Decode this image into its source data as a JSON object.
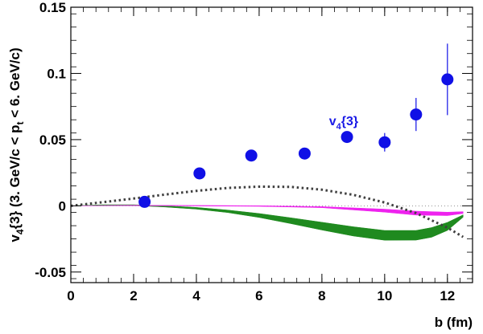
{
  "chart_data": {
    "type": "scatter",
    "xlabel": "b (fm)",
    "ylabel": {
      "main": "v",
      "main_sub": "4",
      "part1": "{3} (3. GeV/c < p",
      "part1_sub": "t",
      "part2": " < 6. GeV/c)"
    },
    "xlim": [
      0,
      12.8
    ],
    "ylim": [
      -0.058,
      0.15
    ],
    "x_ticks": [
      0,
      2,
      4,
      6,
      8,
      10,
      12
    ],
    "x_tick_labels": [
      "0",
      "2",
      "4",
      "6",
      "8",
      "10",
      "12"
    ],
    "y_ticks": [
      -0.05,
      0,
      0.05,
      0.1,
      0.15
    ],
    "y_tick_labels": [
      "-0.05",
      "0",
      "0.05",
      "0.1",
      "0.15"
    ],
    "annotation": {
      "text": "v",
      "sub": "4",
      "rest": "{3}",
      "x": 9.1,
      "y": 0.061
    },
    "points": {
      "color": "#1010e6",
      "x": [
        2.35,
        4.1,
        5.75,
        7.45,
        8.8,
        10.0,
        11.0,
        12.0
      ],
      "y": [
        0.003,
        0.0245,
        0.038,
        0.0395,
        0.052,
        0.048,
        0.069,
        0.0955
      ],
      "err": [
        0.001,
        0.004,
        0.0015,
        0.0015,
        0.004,
        0.007,
        0.0125,
        0.027
      ]
    },
    "dotted_curve": {
      "color": "#404040",
      "x": [
        0,
        1,
        2,
        3,
        4,
        5,
        6,
        7,
        8,
        9,
        10,
        11,
        12,
        12.5
      ],
      "y": [
        0,
        0.0027,
        0.0055,
        0.0085,
        0.0113,
        0.0135,
        0.0145,
        0.0143,
        0.0122,
        0.0083,
        0.0025,
        -0.0055,
        -0.0165,
        -0.0235
      ]
    },
    "green_band": {
      "color": "#1f8a1f",
      "x": [
        0,
        1,
        2,
        3,
        4,
        5,
        6,
        7,
        8,
        9,
        10,
        11,
        11.5,
        12,
        12.5
      ],
      "upper": [
        0,
        0.0008,
        0.0008,
        0,
        -0.0012,
        -0.0032,
        -0.0058,
        -0.009,
        -0.0124,
        -0.0158,
        -0.0186,
        -0.0186,
        -0.0164,
        -0.0125,
        -0.0068
      ],
      "lower": [
        0,
        0.0003,
        0.0002,
        -0.0009,
        -0.0025,
        -0.0051,
        -0.0088,
        -0.0134,
        -0.0183,
        -0.0228,
        -0.026,
        -0.0259,
        -0.0237,
        -0.0186,
        -0.0086
      ]
    },
    "magenta_band": {
      "color": "#ee22ee",
      "x": [
        0,
        2,
        4,
        6,
        8,
        10,
        11,
        12,
        12.5
      ],
      "upper": [
        0,
        0.0004,
        0.0003,
        0.0001,
        -0.0006,
        -0.0025,
        -0.004,
        -0.0048,
        -0.0044
      ],
      "lower": [
        0,
        0.0001,
        -0.0001,
        -0.0004,
        -0.0014,
        -0.0048,
        -0.007,
        -0.0074,
        -0.0058
      ]
    }
  }
}
